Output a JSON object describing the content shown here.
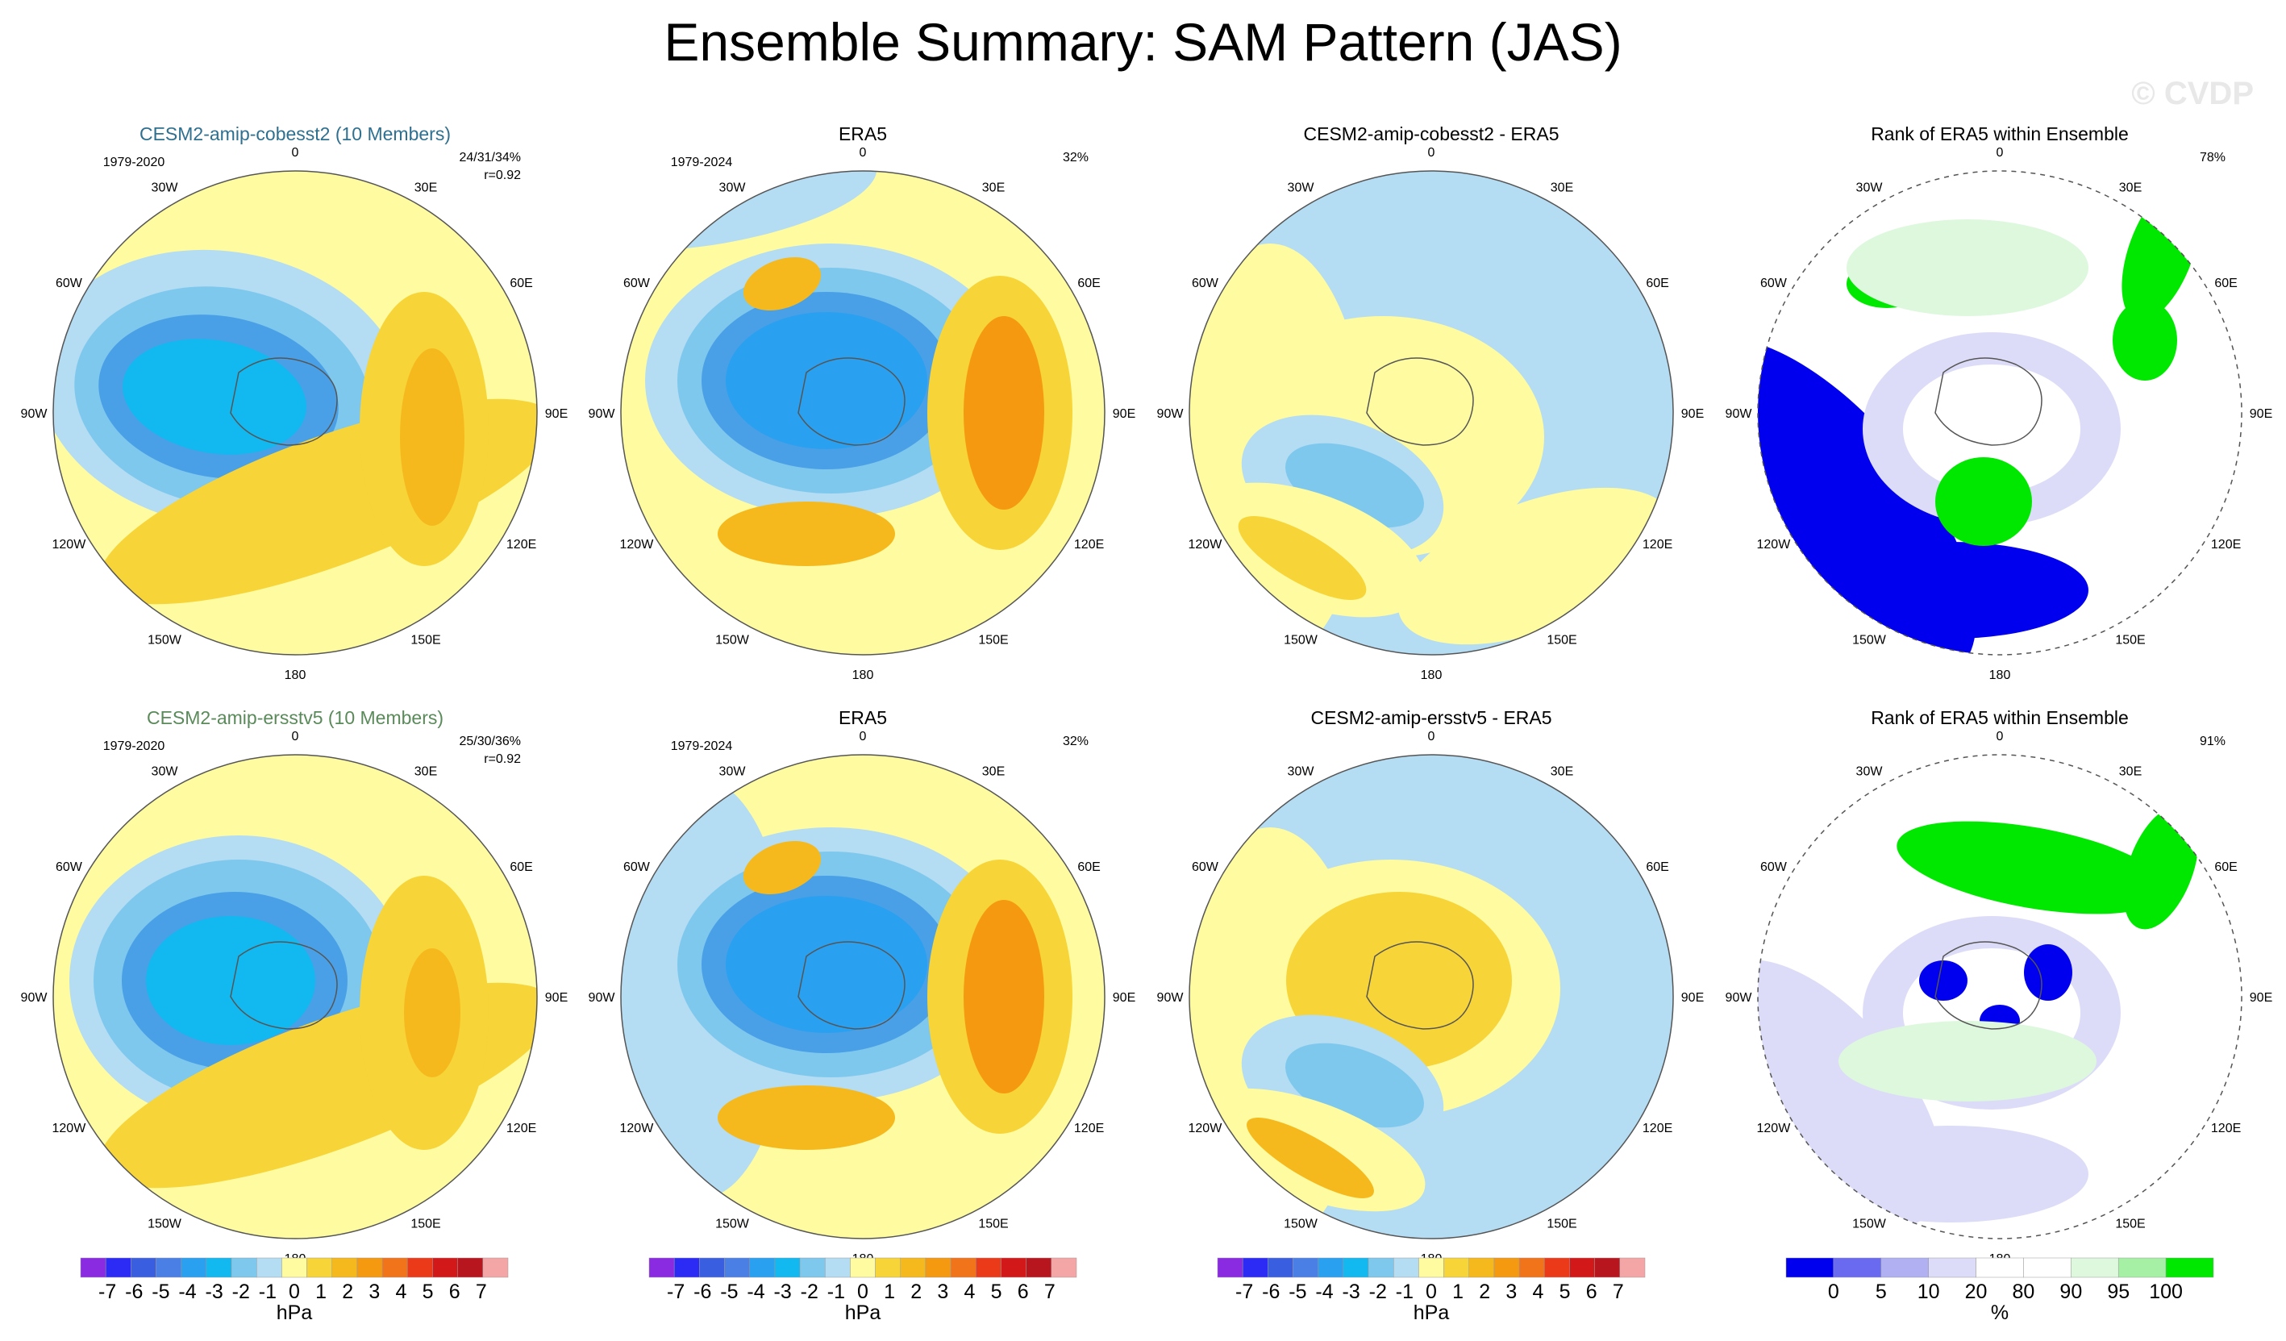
{
  "title": "Ensemble Summary: SAM Pattern (JAS)",
  "watermark": "© CVDP",
  "lon_labels": [
    "0",
    "30E",
    "60E",
    "90E",
    "120E",
    "150E",
    "180",
    "150W",
    "120W",
    "90W",
    "60W",
    "30W"
  ],
  "panels": [
    {
      "id": "r1c1",
      "title": "CESM2-amip-cobesst2 (10 Members)",
      "title_color": "#2f6f8f",
      "years": "1979-2020",
      "pct": "24/31/34%",
      "corr": "r=0.92"
    },
    {
      "id": "r1c2",
      "title": "ERA5",
      "title_color": "#000000",
      "years": "1979-2024",
      "pct": "32%",
      "corr": ""
    },
    {
      "id": "r1c3",
      "title": "CESM2-amip-cobesst2 - ERA5",
      "title_color": "#000000",
      "years": "",
      "pct": "",
      "corr": ""
    },
    {
      "id": "r1c4",
      "title": "Rank of ERA5 within Ensemble",
      "title_color": "#000000",
      "years": "",
      "pct": "78%",
      "corr": ""
    },
    {
      "id": "r2c1",
      "title": "CESM2-amip-ersstv5 (10 Members)",
      "title_color": "#5a8a5a",
      "years": "1979-2020",
      "pct": "25/30/36%",
      "corr": "r=0.92"
    },
    {
      "id": "r2c2",
      "title": "ERA5",
      "title_color": "#000000",
      "years": "1979-2024",
      "pct": "32%",
      "corr": ""
    },
    {
      "id": "r2c3",
      "title": "CESM2-amip-ersstv5 - ERA5",
      "title_color": "#000000",
      "years": "",
      "pct": "",
      "corr": ""
    },
    {
      "id": "r2c4",
      "title": "Rank of ERA5 within Ensemble",
      "title_color": "#000000",
      "years": "",
      "pct": "91%",
      "corr": ""
    }
  ],
  "colorbar_hpa": {
    "colors": [
      "#8a2be2",
      "#2b2bf5",
      "#3a5ee0",
      "#4a7fe6",
      "#2aa0f0",
      "#12b8f0",
      "#7ec8ee",
      "#b4dcf2",
      "#fffba0",
      "#f7d437",
      "#f5b91e",
      "#f59a10",
      "#f2741a",
      "#ea3a1a",
      "#d21818",
      "#b8161e",
      "#f4a6a6"
    ],
    "labels": [
      "-7",
      "-6",
      "-5",
      "-4",
      "-3",
      "-2",
      "-1",
      "0",
      "1",
      "2",
      "3",
      "4",
      "5",
      "6",
      "7"
    ],
    "units": "hPa"
  },
  "colorbar_rank": {
    "colors": [
      "#0000ee",
      "#6a6af0",
      "#b0b0f2",
      "#dcdcf8",
      "#ffffff",
      "#ffffff",
      "#def8de",
      "#a6f0a6",
      "#00e800"
    ],
    "labels": [
      "0",
      "5",
      "10",
      "20",
      "80",
      "90",
      "95",
      "100"
    ],
    "units": "%"
  },
  "colors": {
    "light_yellow": "#fffba0",
    "yellow": "#f7d437",
    "gold": "#f5b91e",
    "orange": "#f59a10",
    "light_blue": "#b4dcf2",
    "sky": "#7ec8ee",
    "mid_blue": "#4aa0e6",
    "deep_blue": "#2aa0f0",
    "cyan": "#12b8f0",
    "rank_blue": "#0000ee",
    "rank_lav": "#dcdcf8",
    "rank_green": "#00e800",
    "rank_lgreen": "#def8de"
  }
}
